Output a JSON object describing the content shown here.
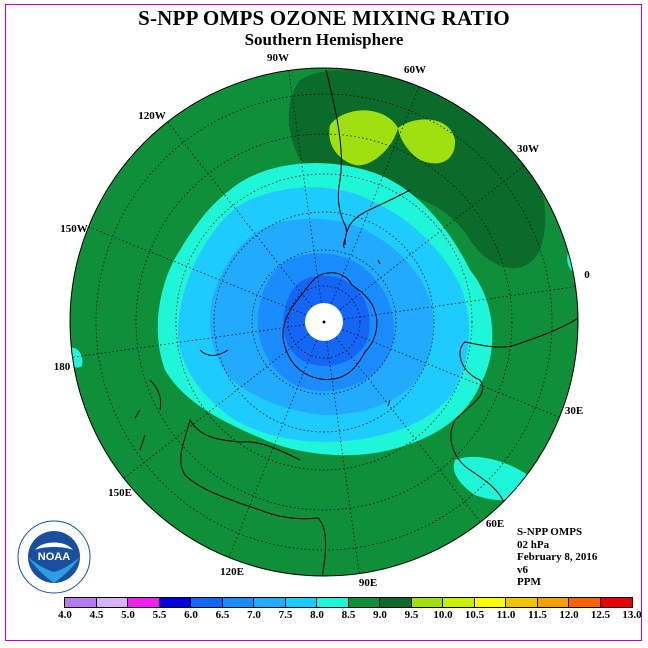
{
  "title": "S-NPP OMPS OZONE MIXING RATIO",
  "subtitle": "Southern Hemisphere",
  "longitude_labels": [
    {
      "text": "90W",
      "name": "lon-label-90w"
    },
    {
      "text": "60W",
      "name": "lon-label-60w"
    },
    {
      "text": "120W",
      "name": "lon-label-120w"
    },
    {
      "text": "30W",
      "name": "lon-label-30w"
    },
    {
      "text": "150W",
      "name": "lon-label-150w"
    },
    {
      "text": "0",
      "name": "lon-label-0"
    },
    {
      "text": "180",
      "name": "lon-label-180"
    },
    {
      "text": "30E",
      "name": "lon-label-30e"
    },
    {
      "text": "150E",
      "name": "lon-label-150e"
    },
    {
      "text": "60E",
      "name": "lon-label-60e"
    },
    {
      "text": "120E",
      "name": "lon-label-120e"
    },
    {
      "text": "90E",
      "name": "lon-label-90e"
    }
  ],
  "info": {
    "instrument": "S-NPP OMPS",
    "level": "02 hPa",
    "date": "February 8, 2016",
    "version": "v6",
    "units": "PPM"
  },
  "logo": {
    "text": "NOAA",
    "ring_text": "NATIONAL OCEANIC AND ATMOSPHERIC ADMINISTRATION · U.S. DEPARTMENT OF COMMERCE"
  },
  "colorbar": {
    "ticks": [
      "4.0",
      "4.5",
      "5.0",
      "5.5",
      "6.0",
      "6.5",
      "7.0",
      "7.5",
      "8.0",
      "8.5",
      "9.0",
      "9.5",
      "10.0",
      "10.5",
      "11.0",
      "11.5",
      "12.0",
      "12.5",
      "13.0"
    ],
    "colors": [
      "#b57cf0",
      "#d8b2f5",
      "#ee22ee",
      "#0000dd",
      "#1466f5",
      "#1a8cff",
      "#22aaff",
      "#1ecbff",
      "#1ff5d8",
      "#0f8f3a",
      "#0a6b2a",
      "#a0e010",
      "#c8f000",
      "#ffff00",
      "#f5c400",
      "#f5a000",
      "#f56400",
      "#e80000",
      "#8b4a2a"
    ]
  },
  "map_colors": {
    "bg_green": "#0f8f3a",
    "dark_green": "#0a6b2a",
    "lime": "#a0e010",
    "cyan_green": "#1ff5d8",
    "sky": "#1ecbff",
    "blue1": "#22aaff",
    "blue2": "#1a8cff",
    "blue3": "#1466f5"
  }
}
